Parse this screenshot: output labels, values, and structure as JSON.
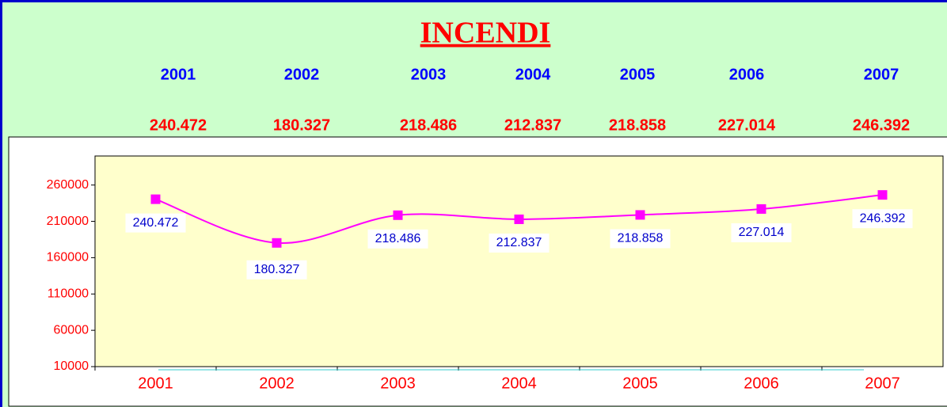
{
  "chart_data": {
    "type": "line",
    "title": "INCENDI",
    "categories": [
      "2001",
      "2002",
      "2003",
      "2004",
      "2005",
      "2006",
      "2007"
    ],
    "series": [
      {
        "color": "#ff00ff",
        "values": [
          240472,
          180327,
          218486,
          212837,
          218858,
          227014,
          246392
        ],
        "value_labels": [
          "240.472",
          "180.327",
          "218.486",
          "212.837",
          "218.858",
          "227.014",
          "246.392"
        ]
      }
    ],
    "ylim": [
      10000,
      300000
    ],
    "yticks": [
      10000,
      60000,
      110000,
      160000,
      210000,
      260000
    ],
    "smooth": true,
    "plot_background": "#ffffcc"
  }
}
